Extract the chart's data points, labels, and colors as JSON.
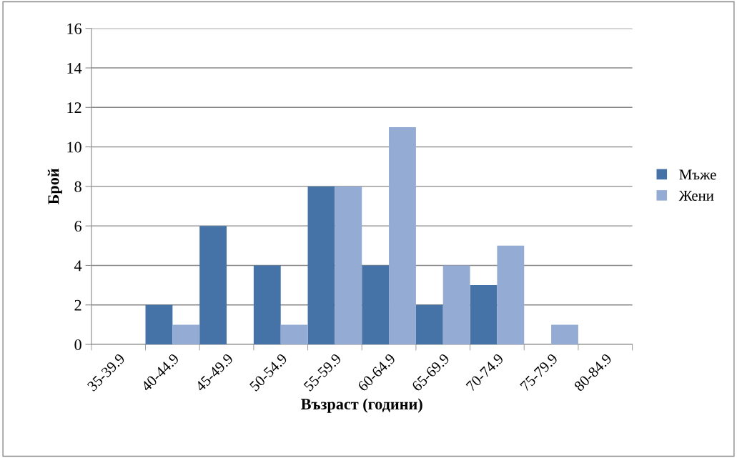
{
  "chart_data": {
    "type": "bar",
    "xlabel": "Възраст (години)",
    "ylabel": "Брой",
    "categories": [
      "35-39.9",
      "40-44.9",
      "45-49.9",
      "50-54.9",
      "55-59.9",
      "60-64.9",
      "65-69.9",
      "70-74.9",
      "75-79.9",
      "80-84.9"
    ],
    "series": [
      {
        "name": "Мъже",
        "color": "#4573a7",
        "values": [
          0,
          2,
          6,
          4,
          8,
          4,
          2,
          3,
          0,
          0
        ]
      },
      {
        "name": "Жени",
        "color": "#94abd3",
        "values": [
          0,
          1,
          0,
          1,
          8,
          11,
          4,
          5,
          1,
          0
        ]
      }
    ],
    "ylim": [
      0,
      16
    ],
    "yticks": [
      0,
      2,
      4,
      6,
      8,
      10,
      12,
      14,
      16
    ],
    "grid": "y",
    "legend": "right"
  }
}
